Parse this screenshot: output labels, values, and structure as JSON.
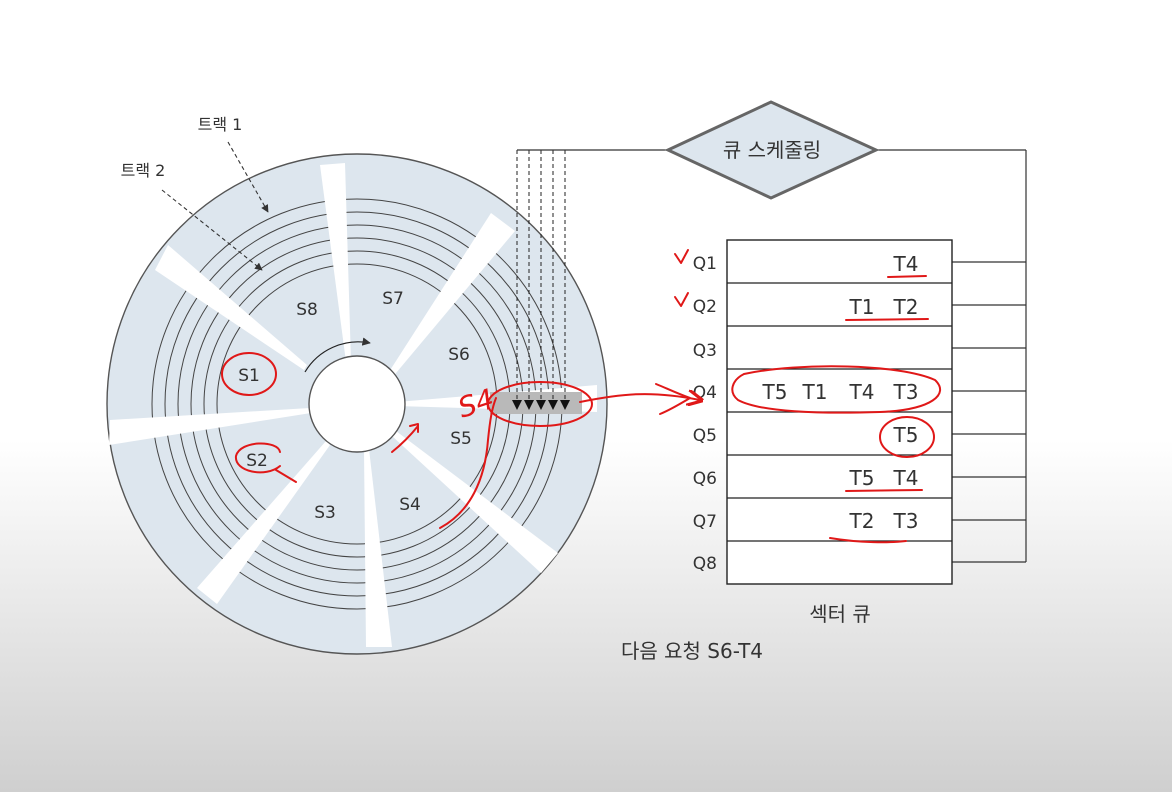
{
  "scheduler": {
    "label": "큐 스케줄링"
  },
  "disk": {
    "track_labels": [
      "트랙 1",
      "트랙 2"
    ],
    "sectors": [
      "S1",
      "S2",
      "S3",
      "S4",
      "S5",
      "S6",
      "S7",
      "S8"
    ]
  },
  "queue": {
    "title": "섹터 큐",
    "rows": [
      {
        "label": "Q1",
        "items": [
          "T4"
        ]
      },
      {
        "label": "Q2",
        "items": [
          "T1",
          "T2"
        ]
      },
      {
        "label": "Q3",
        "items": []
      },
      {
        "label": "Q4",
        "items": [
          "T5",
          "T1",
          "T4",
          "T3"
        ]
      },
      {
        "label": "Q5",
        "items": [
          "T5"
        ]
      },
      {
        "label": "Q6",
        "items": [
          "T5",
          "T4"
        ]
      },
      {
        "label": "Q7",
        "items": [
          "T2",
          "T3"
        ]
      },
      {
        "label": "Q8",
        "items": []
      }
    ]
  },
  "next_request": "다음 요청 S6-T4",
  "annotations": {
    "handwritten": "S4"
  },
  "colors": {
    "disk_fill": "#dde6ee",
    "ink": "#333333",
    "annotation": "#e01818",
    "highlight": "#b9b9b9"
  }
}
